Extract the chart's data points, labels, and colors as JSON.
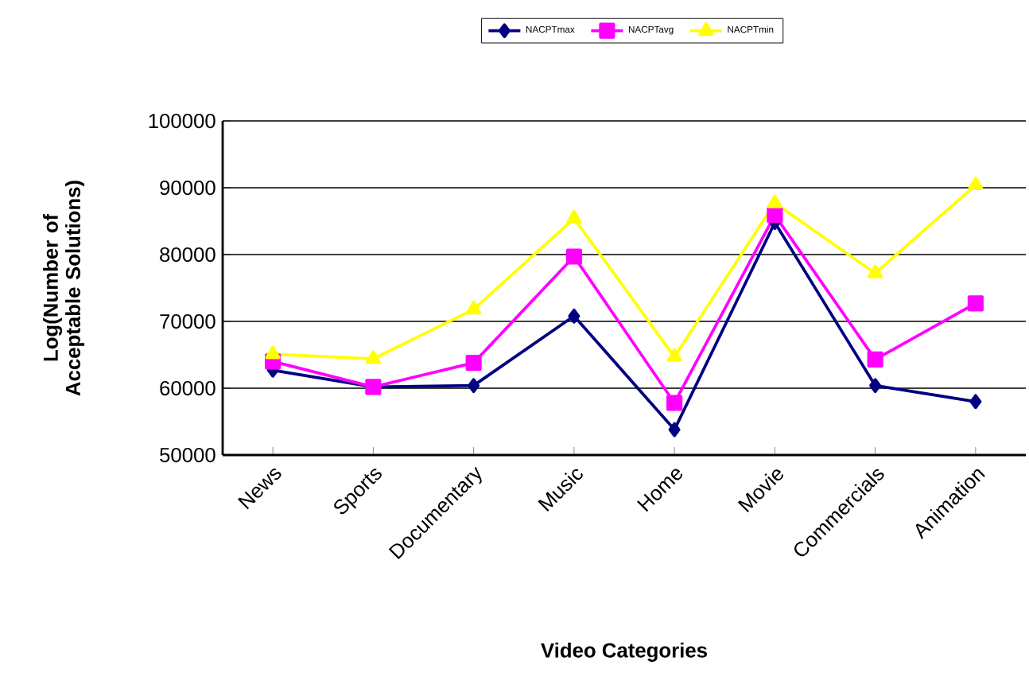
{
  "chart_data": {
    "type": "line",
    "xlabel": "Video Categories",
    "ylabel": "Log(Number of Acceptable Solutions)",
    "categories": [
      "News",
      "Sports",
      "Documentary",
      "Music",
      "Home",
      "Movie",
      "Commercials",
      "Animation"
    ],
    "series": [
      {
        "name": "NACPTmax",
        "color": "#000080",
        "marker": "diamond",
        "values": [
          62700,
          60200,
          60400,
          70800,
          53800,
          84800,
          60400,
          58000
        ]
      },
      {
        "name": "NACPTavg",
        "color": "#ff00ff",
        "marker": "square",
        "values": [
          64000,
          60200,
          63800,
          79700,
          57800,
          85900,
          64300,
          72700
        ]
      },
      {
        "name": "NACPTmin",
        "color": "#ffff00",
        "marker": "triangle",
        "values": [
          65100,
          64400,
          71800,
          85400,
          64700,
          87700,
          77200,
          90400
        ]
      }
    ],
    "ylim": [
      50000,
      100000
    ],
    "yticks": [
      50000,
      60000,
      70000,
      80000,
      90000,
      100000
    ],
    "grid": "y",
    "legend": "top"
  }
}
